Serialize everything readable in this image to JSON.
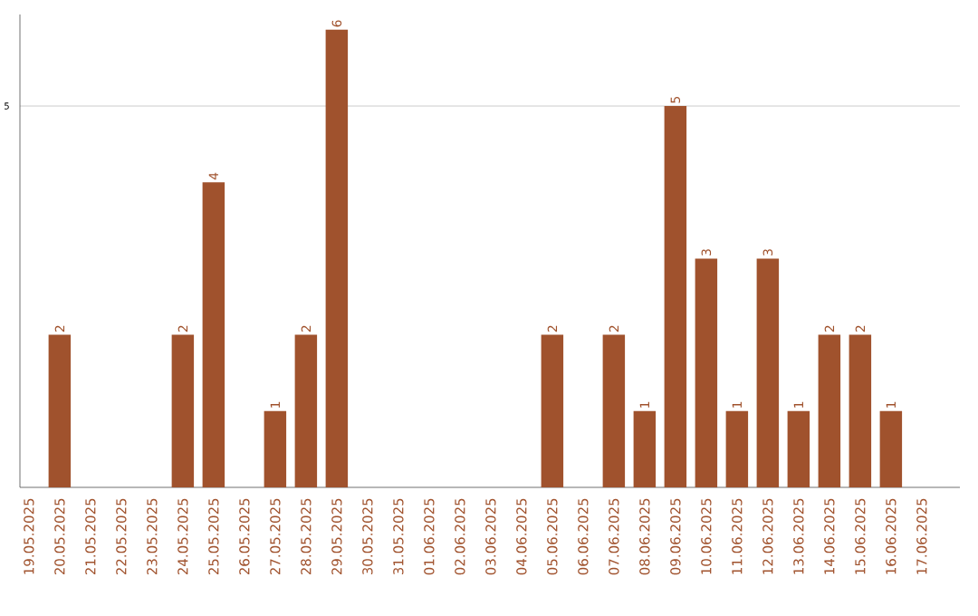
{
  "chart_data": {
    "type": "bar",
    "categories": [
      "19.05.2025",
      "20.05.2025",
      "21.05.2025",
      "22.05.2025",
      "23.05.2025",
      "24.05.2025",
      "25.05.2025",
      "26.05.2025",
      "27.05.2025",
      "28.05.2025",
      "29.05.2025",
      "30.05.2025",
      "31.05.2025",
      "01.06.2025",
      "02.06.2025",
      "03.06.2025",
      "04.06.2025",
      "05.06.2025",
      "06.06.2025",
      "07.06.2025",
      "08.06.2025",
      "09.06.2025",
      "10.06.2025",
      "11.06.2025",
      "12.06.2025",
      "13.06.2025",
      "14.06.2025",
      "15.06.2025",
      "16.06.2025",
      "17.06.2025"
    ],
    "values": [
      0,
      2,
      0,
      0,
      0,
      2,
      4,
      0,
      1,
      2,
      6,
      0,
      0,
      0,
      0,
      0,
      0,
      2,
      0,
      2,
      1,
      5,
      3,
      1,
      3,
      1,
      2,
      2,
      1,
      0
    ],
    "value_labels": [
      null,
      "2",
      null,
      null,
      null,
      "2",
      "4",
      null,
      "1",
      "2",
      "6",
      null,
      null,
      null,
      null,
      null,
      null,
      "2",
      null,
      "2",
      "1",
      "5",
      "3",
      "1",
      "3",
      "1",
      "2",
      "2",
      "1",
      null
    ],
    "color": "#a0522d",
    "ylim": [
      0,
      6.2
    ],
    "yticks": [
      5
    ],
    "grid": "y"
  }
}
